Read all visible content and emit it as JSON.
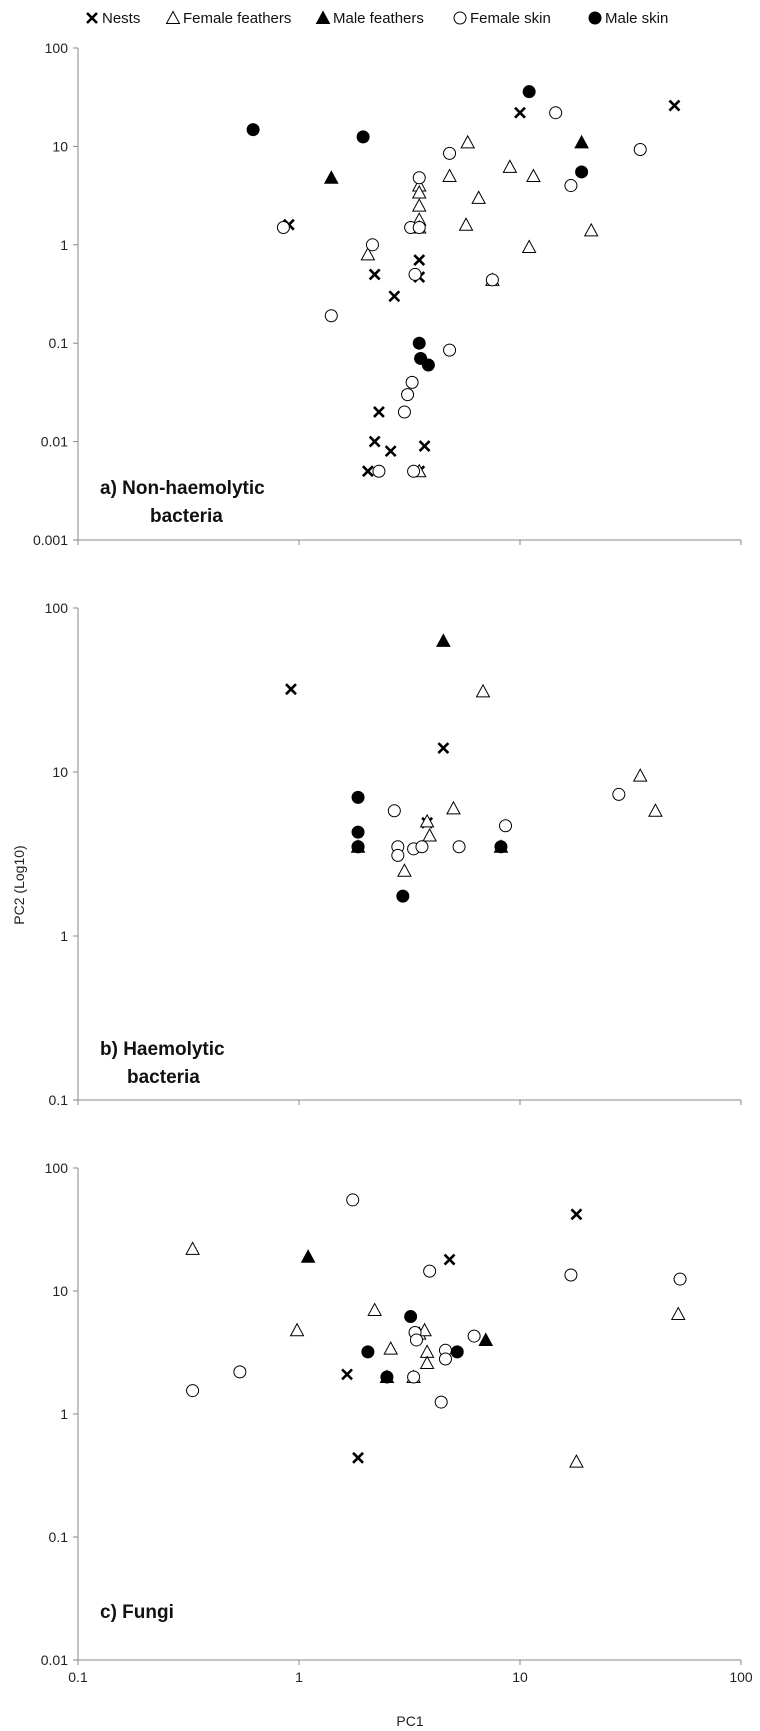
{
  "chart_data": {
    "type": "scatter",
    "xlabel": "PC1",
    "ylabel": "PC2 (Log10)",
    "x_scale": "log",
    "y_scale": "log",
    "xlim": [
      0.1,
      100
    ],
    "x_ticks": [
      "0.1",
      "1",
      "10",
      "100"
    ],
    "legend": {
      "placement": "top",
      "entries": [
        {
          "key": "nests",
          "label": "Nests",
          "marker": "cross"
        },
        {
          "key": "female_feathers",
          "label": "Female feathers",
          "marker": "triangle-open"
        },
        {
          "key": "male_feathers",
          "label": "Male feathers",
          "marker": "triangle-filled"
        },
        {
          "key": "female_skin",
          "label": "Female skin",
          "marker": "circle-open"
        },
        {
          "key": "male_skin",
          "label": "Male skin",
          "marker": "circle-filled"
        }
      ]
    },
    "panels": [
      {
        "label_line1": "a) Non-haemolytic",
        "label_line2": "bacteria",
        "ylim": [
          0.001,
          100
        ],
        "y_ticks": [
          "0.001",
          "0.01",
          "0.1",
          "1",
          "10",
          "100"
        ],
        "series": {
          "nests": [
            [
              0.9,
              1.6
            ],
            [
              2.2,
              0.5
            ],
            [
              2.7,
              0.3
            ],
            [
              3.5,
              0.7
            ],
            [
              3.5,
              0.47
            ],
            [
              10,
              22
            ],
            [
              50,
              26
            ],
            [
              2.3,
              0.02
            ],
            [
              2.2,
              0.01
            ],
            [
              2.6,
              0.008
            ],
            [
              3.7,
              0.009
            ],
            [
              2.05,
              0.005
            ],
            [
              3.5,
              0.005
            ]
          ],
          "female_feathers": [
            [
              5.8,
              11
            ],
            [
              3.5,
              4
            ],
            [
              3.5,
              3.4
            ],
            [
              3.5,
              2.5
            ],
            [
              3.5,
              1.8
            ],
            [
              4.8,
              5
            ],
            [
              9,
              6.2
            ],
            [
              11.5,
              5
            ],
            [
              6.5,
              3
            ],
            [
              5.7,
              1.6
            ],
            [
              3.5,
              1.5
            ],
            [
              2.05,
              0.8
            ],
            [
              11,
              0.95
            ],
            [
              7.5,
              0.44
            ],
            [
              21,
              1.4
            ],
            [
              3.5,
              0.005
            ]
          ],
          "male_feathers": [
            [
              1.4,
              4.8
            ],
            [
              19,
              11
            ]
          ],
          "female_skin": [
            [
              0.85,
              1.5
            ],
            [
              3.5,
              4.8
            ],
            [
              4.8,
              8.5
            ],
            [
              14.5,
              22
            ],
            [
              17,
              4
            ],
            [
              35,
              9.3
            ],
            [
              2.15,
              1
            ],
            [
              3.2,
              1.5
            ],
            [
              3.5,
              1.5
            ],
            [
              3.35,
              0.5
            ],
            [
              7.5,
              0.44
            ],
            [
              1.4,
              0.19
            ],
            [
              4.8,
              0.085
            ],
            [
              3.25,
              0.04
            ],
            [
              3.1,
              0.03
            ],
            [
              3,
              0.02
            ],
            [
              2.3,
              0.005
            ],
            [
              3.3,
              0.005
            ]
          ],
          "male_skin": [
            [
              0.62,
              14.8
            ],
            [
              1.95,
              12.5
            ],
            [
              11,
              36
            ],
            [
              19,
              5.5
            ],
            [
              3.5,
              0.1
            ],
            [
              3.55,
              0.07
            ],
            [
              3.85,
              0.06
            ]
          ]
        }
      },
      {
        "label_line1": "b) Haemolytic",
        "label_line2": "bacteria",
        "ylim": [
          0.1,
          100
        ],
        "y_ticks": [
          "0.1",
          "1",
          "10",
          "100"
        ],
        "series": {
          "nests": [
            [
              0.92,
              32
            ],
            [
              4.5,
              14
            ],
            [
              3.8,
              4.9
            ]
          ],
          "female_feathers": [
            [
              6.8,
              31
            ],
            [
              5,
              6
            ],
            [
              3.8,
              5
            ],
            [
              3.9,
              4.1
            ],
            [
              3,
              2.5
            ],
            [
              35,
              9.5
            ],
            [
              41,
              5.8
            ]
          ],
          "male_feathers": [
            [
              4.5,
              63
            ],
            [
              1.85,
              3.5
            ],
            [
              8.2,
              3.5
            ]
          ],
          "female_skin": [
            [
              2.7,
              5.8
            ],
            [
              1.85,
              3.5
            ],
            [
              2.8,
              3.5
            ],
            [
              2.8,
              3.1
            ],
            [
              3.3,
              3.4
            ],
            [
              3.6,
              3.5
            ],
            [
              5.3,
              3.5
            ],
            [
              8.6,
              4.7
            ],
            [
              28,
              7.3
            ]
          ],
          "male_skin": [
            [
              1.85,
              7
            ],
            [
              1.85,
              4.3
            ],
            [
              1.85,
              3.5
            ],
            [
              8.2,
              3.5
            ],
            [
              2.95,
              1.75
            ]
          ]
        }
      },
      {
        "label_line1": "c) Fungi",
        "label_line2": "",
        "ylim": [
          0.01,
          100
        ],
        "y_ticks": [
          "0.01",
          "0.1",
          "1",
          "10",
          "100"
        ],
        "series": {
          "nests": [
            [
              18,
              42
            ],
            [
              4.8,
              18
            ],
            [
              1.65,
              2.1
            ],
            [
              1.85,
              0.44
            ]
          ],
          "female_feathers": [
            [
              0.33,
              22
            ],
            [
              0.98,
              4.8
            ],
            [
              2.2,
              7
            ],
            [
              2.6,
              3.4
            ],
            [
              3.5,
              4.5
            ],
            [
              3.7,
              4.8
            ],
            [
              3.8,
              3.2
            ],
            [
              3.8,
              2.6
            ],
            [
              3.3,
              2
            ],
            [
              52,
              6.5
            ],
            [
              18,
              0.41
            ]
          ],
          "male_feathers": [
            [
              1.1,
              19
            ],
            [
              7,
              4
            ],
            [
              2.5,
              2
            ]
          ],
          "female_skin": [
            [
              1.75,
              55
            ],
            [
              3.9,
              14.5
            ],
            [
              17,
              13.5
            ],
            [
              53,
              12.5
            ],
            [
              0.33,
              1.55
            ],
            [
              0.54,
              2.2
            ],
            [
              3.35,
              4.6
            ],
            [
              3.4,
              4
            ],
            [
              4.6,
              3.3
            ],
            [
              4.6,
              2.8
            ],
            [
              6.2,
              4.3
            ],
            [
              3.3,
              2
            ],
            [
              4.4,
              1.25
            ]
          ],
          "male_skin": [
            [
              3.2,
              6.2
            ],
            [
              2.05,
              3.2
            ],
            [
              5.2,
              3.2
            ],
            [
              2.5,
              2
            ]
          ]
        }
      }
    ]
  }
}
